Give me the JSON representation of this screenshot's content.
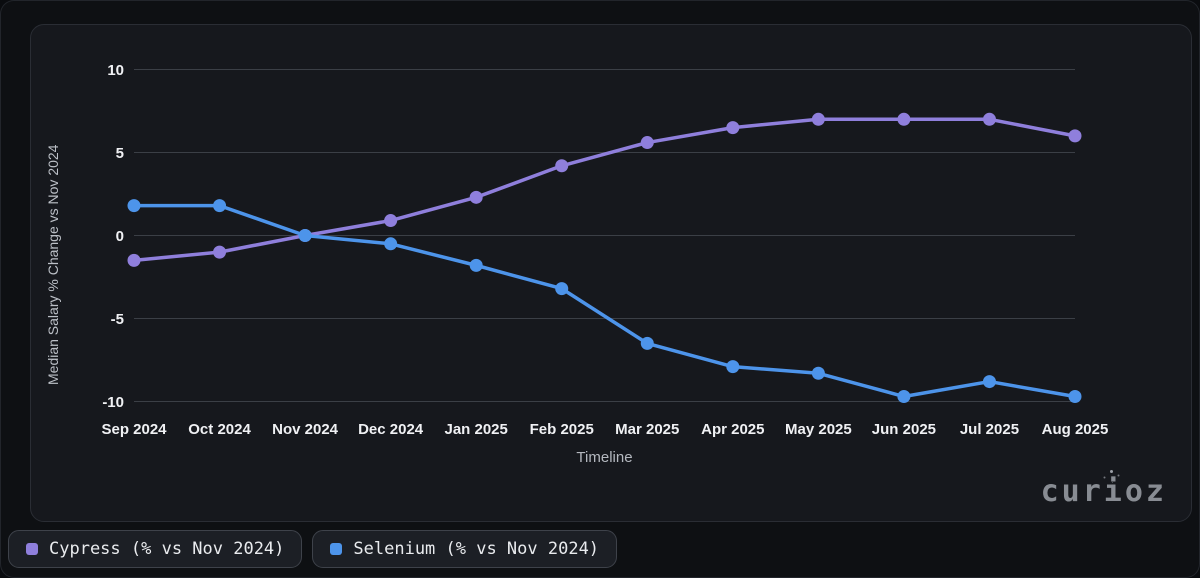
{
  "chart_data": {
    "type": "line",
    "title": "",
    "xlabel": "Timeline",
    "ylabel": "Median Salary % Change vs Nov 2024",
    "categories": [
      "Sep 2024",
      "Oct 2024",
      "Nov 2024",
      "Dec 2024",
      "Jan 2025",
      "Feb 2025",
      "Mar 2025",
      "Apr 2025",
      "May 2025",
      "Jun 2025",
      "Jul 2025",
      "Aug 2025"
    ],
    "yticks": [
      10,
      5,
      0,
      -5,
      -10
    ],
    "ylim": [
      -10.5,
      10.5
    ],
    "grid": "horizontal",
    "legend_position": "bottom-left",
    "series": [
      {
        "name": "Cypress (% vs Nov 2024)",
        "color": "#8f7fdc",
        "values": [
          -1.5,
          -1.0,
          0,
          0.9,
          2.3,
          4.2,
          5.6,
          6.5,
          7.0,
          7.0,
          7.0,
          6.0
        ]
      },
      {
        "name": "Selenium (% vs Nov 2024)",
        "color": "#4d94ea",
        "values": [
          1.8,
          1.8,
          0,
          -0.5,
          -1.8,
          -3.2,
          -6.5,
          -7.9,
          -8.3,
          -9.7,
          -8.8,
          -9.7
        ]
      }
    ]
  },
  "branding": {
    "logo_text": "curioz"
  },
  "theme": {
    "page_bg": "#0e1013",
    "card_bg": "#16181d",
    "card_border": "#2a2d34",
    "grid_color": "#3b3f46",
    "tick_color": "#f0f1f4",
    "axis_title_color": "#b4b8bf",
    "legend_bg": "#1c1f25",
    "legend_border": "#3e424a",
    "legend_text": "#e9ebee",
    "logo_color": "#888c93"
  }
}
